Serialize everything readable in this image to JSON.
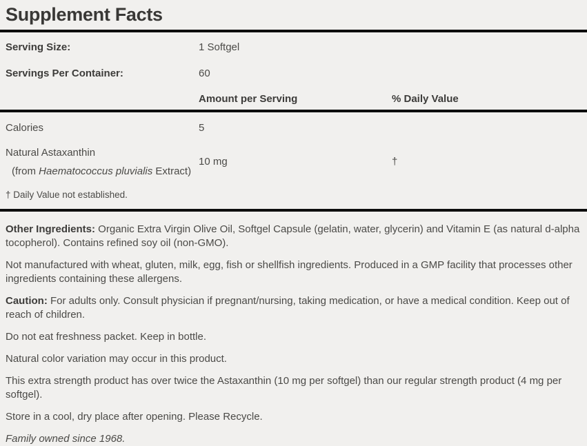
{
  "title": "Supplement Facts",
  "facts": {
    "serving_size_label": "Serving Size:",
    "serving_size_value": "1 Softgel",
    "servings_label": "Servings Per Container:",
    "servings_value": "60",
    "col_amount": "Amount per Serving",
    "col_daily_value": "% Daily Value",
    "rows": [
      {
        "name": "Calories",
        "amount": "5",
        "dv": ""
      },
      {
        "name_line1": "Natural Astaxanthin",
        "name_prefix": "(from ",
        "name_species": "Haematococcus pluvialis",
        "name_suffix": " Extract)",
        "amount": "10 mg",
        "dv": "†"
      }
    ],
    "footnote": "† Daily Value not established."
  },
  "paragraphs": [
    {
      "label": "Other Ingredients:",
      "text": "  Organic Extra Virgin Olive Oil, Softgel Capsule (gelatin, water, glycerin) and Vitamin E (as natural d-alpha tocopherol). Contains refined soy oil (non-GMO)."
    },
    {
      "label": "",
      "text": "Not manufactured with wheat, gluten, milk, egg, fish or shellfish ingredients. Produced in a GMP facility that processes other ingredients containing these allergens."
    },
    {
      "label": "Caution:",
      "text": " For adults only. Consult physician if pregnant/nursing, taking medication, or have a medical condition. Keep out of reach of children."
    },
    {
      "label": "",
      "text": "Do not eat freshness packet. Keep in bottle."
    },
    {
      "label": "",
      "text": "Natural color variation may occur in this product."
    },
    {
      "label": "",
      "text": "This extra strength product has over twice the Astaxanthin (10 mg per softgel) than our regular strength product (4 mg per softgel)."
    },
    {
      "label": "",
      "text": "Store in a cool, dry place after opening. Please Recycle."
    },
    {
      "label": "",
      "text": "Family owned since 1968."
    }
  ],
  "colors": {
    "background": "#f1f0ee",
    "rule": "#0d0d0d",
    "body_text": "#4b4a47",
    "bold_text": "#3d3c3a"
  }
}
